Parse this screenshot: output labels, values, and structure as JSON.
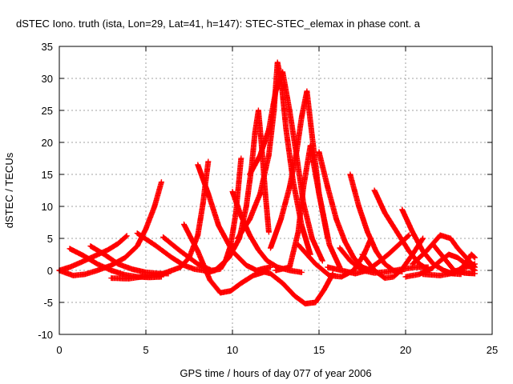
{
  "chart_data": {
    "type": "scatter",
    "title": "dSTEC Iono. truth (ista, Lon=29, Lat=41, h=147): STEC-STEC_elemax in phase cont. a",
    "xlabel": "GPS time / hours of day 077 of year 2006",
    "ylabel": "dSTEC  / TECUs",
    "xlim": [
      0,
      25
    ],
    "ylim": [
      -10,
      35
    ],
    "xticks": [
      0,
      5,
      10,
      15,
      20,
      25
    ],
    "yticks": [
      -10,
      -5,
      0,
      5,
      10,
      15,
      20,
      25,
      30,
      35
    ],
    "grid": true,
    "legend": "none",
    "marker": "plus",
    "color": "#ff0000",
    "series": [
      {
        "x": [
          0.0,
          0.6,
          1.2,
          2.0,
          2.8,
          3.4,
          3.9
        ],
        "y": [
          0.0,
          0.5,
          1.2,
          2.2,
          3.2,
          4.2,
          5.4
        ]
      },
      {
        "x": [
          0.6,
          1.4,
          2.2,
          3.0,
          3.8,
          4.5,
          5.2,
          5.9
        ],
        "y": [
          3.4,
          2.3,
          1.0,
          0.0,
          -0.7,
          -1.0,
          -1.1,
          -1.0
        ]
      },
      {
        "x": [
          1.8,
          2.6,
          3.4,
          4.2,
          5.0,
          5.8,
          6.3
        ],
        "y": [
          3.8,
          2.5,
          1.0,
          0.2,
          -0.3,
          -0.5,
          -0.5
        ]
      },
      {
        "x": [
          0.0,
          0.8,
          1.5,
          2.2,
          3.0,
          3.8,
          4.5,
          5.0,
          5.5,
          5.9
        ],
        "y": [
          0.0,
          -0.8,
          -0.6,
          0.0,
          0.8,
          2.0,
          3.8,
          6.5,
          10.0,
          13.8
        ]
      },
      {
        "x": [
          3.0,
          4.0,
          5.0,
          6.0,
          7.0,
          7.5,
          8.0,
          8.3,
          8.6
        ],
        "y": [
          -1.2,
          -1.3,
          -0.9,
          -0.5,
          0.5,
          2.0,
          5.5,
          10.5,
          17.0
        ]
      },
      {
        "x": [
          4.5,
          5.5,
          6.5,
          7.2,
          7.8,
          8.3,
          8.7,
          9.0
        ],
        "y": [
          5.8,
          4.0,
          2.0,
          0.8,
          0.2,
          0.0,
          -0.2,
          0.0
        ]
      },
      {
        "x": [
          6.0,
          7.0,
          8.0,
          8.8,
          9.3,
          9.6,
          9.9,
          10.2,
          10.5
        ],
        "y": [
          5.2,
          3.0,
          1.0,
          0.0,
          0.2,
          1.5,
          4.0,
          9.0,
          17.5
        ]
      },
      {
        "x": [
          7.2,
          8.0,
          8.7,
          9.3,
          9.9,
          10.5,
          11.2,
          12.0
        ],
        "y": [
          7.2,
          3.0,
          -1.5,
          -3.5,
          -3.2,
          -2.0,
          -0.8,
          -0.1
        ]
      },
      {
        "x": [
          8.0,
          8.6,
          9.2,
          10.0,
          10.8,
          11.4,
          11.8,
          12.2
        ],
        "y": [
          16.5,
          12.0,
          7.0,
          3.0,
          0.8,
          0.0,
          0.3,
          0.5
        ]
      },
      {
        "x": [
          10.0,
          10.5,
          11.0,
          11.5,
          12.0,
          12.6,
          13.3,
          14.0
        ],
        "y": [
          12.3,
          8.5,
          5.5,
          3.2,
          1.5,
          0.5,
          0.0,
          -0.3
        ]
      },
      {
        "x": [
          9.0,
          9.8,
          10.4,
          10.8,
          11.1,
          11.3,
          11.5,
          11.7,
          11.9,
          12.1
        ],
        "y": [
          0.0,
          2.0,
          5.0,
          10.0,
          16.0,
          21.5,
          25.0,
          19.0,
          12.0,
          6.0
        ]
      },
      {
        "x": [
          10.3,
          11.0,
          11.6,
          12.1,
          12.4,
          12.6,
          12.8,
          13.1,
          13.5,
          14.0,
          14.5
        ],
        "y": [
          5.0,
          8.0,
          12.0,
          18.0,
          25.0,
          32.5,
          30.0,
          22.0,
          14.0,
          7.0,
          2.5
        ]
      },
      {
        "x": [
          11.0,
          11.6,
          12.1,
          12.5,
          12.9,
          13.3,
          13.7,
          14.1,
          14.6,
          15.2
        ],
        "y": [
          15.0,
          18.0,
          22.0,
          28.0,
          31.0,
          25.0,
          18.0,
          10.5,
          5.0,
          1.5
        ]
      },
      {
        "x": [
          12.2,
          12.8,
          13.3,
          13.7,
          14.0,
          14.3,
          14.6,
          15.0,
          15.5
        ],
        "y": [
          3.5,
          8.0,
          13.0,
          18.5,
          24.0,
          28.0,
          21.0,
          12.0,
          5.0
        ]
      },
      {
        "x": [
          11.5,
          12.2,
          12.9,
          13.6,
          14.2,
          14.8,
          15.3,
          15.8
        ],
        "y": [
          0.0,
          -0.5,
          -2.0,
          -4.0,
          -5.2,
          -5.0,
          -3.0,
          -0.5
        ]
      },
      {
        "x": [
          12.5,
          13.3,
          13.8,
          14.1,
          14.5,
          15.0,
          15.6,
          16.2
        ],
        "y": [
          0.0,
          0.5,
          6.0,
          13.0,
          19.5,
          12.0,
          4.0,
          0.5
        ]
      },
      {
        "x": [
          15.0,
          15.5,
          16.0,
          16.5,
          17.0,
          17.5,
          18.0
        ],
        "y": [
          18.5,
          13.0,
          8.0,
          4.5,
          2.0,
          0.5,
          0.0
        ]
      },
      {
        "x": [
          13.8,
          14.8,
          15.6,
          16.3,
          17.0,
          17.6,
          18.0
        ],
        "y": [
          4.0,
          1.0,
          -0.8,
          -1.0,
          0.0,
          2.5,
          5.0
        ]
      },
      {
        "x": [
          16.8,
          17.3,
          17.8,
          18.3,
          18.8,
          19.3,
          19.8
        ],
        "y": [
          15.0,
          10.0,
          6.0,
          3.0,
          1.0,
          0.0,
          -0.2
        ]
      },
      {
        "x": [
          15.5,
          16.3,
          17.1,
          17.8,
          18.4,
          19.0,
          19.6,
          20.2
        ],
        "y": [
          0.5,
          0.0,
          -0.5,
          0.0,
          1.2,
          2.5,
          4.0,
          5.5
        ]
      },
      {
        "x": [
          17.5,
          18.2,
          18.8,
          19.3,
          19.8,
          20.4,
          21.0
        ],
        "y": [
          2.5,
          0.0,
          -1.2,
          -1.0,
          0.2,
          2.5,
          5.0
        ]
      },
      {
        "x": [
          16.2,
          16.8,
          17.5,
          18.2,
          19.0,
          19.8,
          20.6,
          21.3
        ],
        "y": [
          3.5,
          1.5,
          0.0,
          -0.4,
          -0.2,
          0.2,
          0.5,
          0.5
        ]
      },
      {
        "x": [
          18.2,
          18.8,
          19.5,
          20.2,
          20.8,
          21.4
        ],
        "y": [
          12.5,
          9.0,
          6.0,
          3.0,
          1.0,
          0.0
        ]
      },
      {
        "x": [
          19.8,
          20.4,
          21.0,
          21.6,
          22.2,
          22.7,
          23.2
        ],
        "y": [
          9.5,
          6.0,
          3.0,
          1.0,
          0.0,
          -0.5,
          -0.6
        ]
      },
      {
        "x": [
          20.0,
          20.8,
          21.5,
          22.0,
          22.5,
          23.0,
          23.5,
          24.0
        ],
        "y": [
          -1.0,
          -0.6,
          0.3,
          1.5,
          2.5,
          2.0,
          1.0,
          0.0
        ]
      },
      {
        "x": [
          20.4,
          21.2,
          22.0,
          22.6,
          23.0,
          23.5,
          24.0
        ],
        "y": [
          1.0,
          3.0,
          5.5,
          5.0,
          3.5,
          2.0,
          0.5
        ]
      },
      {
        "x": [
          21.6,
          22.2,
          22.8,
          23.4,
          24.0
        ],
        "y": [
          4.0,
          2.0,
          0.0,
          -0.4,
          -0.5
        ]
      },
      {
        "x": [
          21.0,
          22.0,
          22.8,
          23.3,
          23.8,
          24.0
        ],
        "y": [
          -0.6,
          -0.8,
          -0.4,
          0.5,
          2.5,
          2.0
        ]
      },
      {
        "x": [
          22.4,
          23.0,
          23.6,
          24.0
        ],
        "y": [
          -0.5,
          0.0,
          0.6,
          1.0
        ]
      }
    ]
  }
}
